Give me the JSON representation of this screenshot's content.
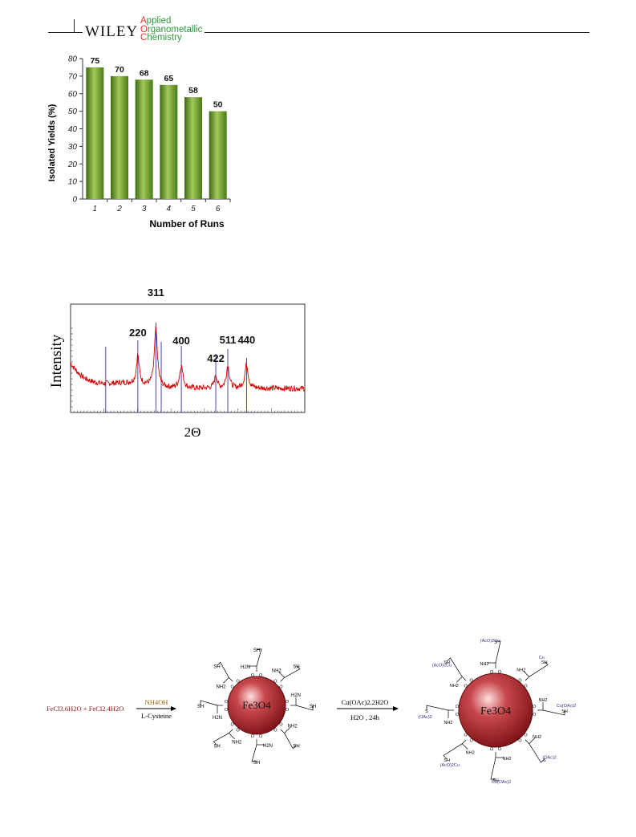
{
  "header": {
    "publisher": "WILEY",
    "journal_lines": [
      {
        "first": "A",
        "rest": "pplied"
      },
      {
        "first": "O",
        "rest": "rganometallic"
      },
      {
        "first": "C",
        "rest": "hemistry"
      }
    ],
    "colors": {
      "first_letter": "#e3342f",
      "rest": "#2a9a3a"
    }
  },
  "chart_data": [
    {
      "type": "bar",
      "categories": [
        "1",
        "2",
        "3",
        "4",
        "5",
        "6"
      ],
      "values": [
        75,
        70,
        68,
        65,
        58,
        50
      ],
      "data_labels": [
        "75",
        "70",
        "68",
        "65",
        "58",
        "50"
      ],
      "xlabel": "Number of Runs",
      "ylabel": "Isolated Yields (%)",
      "ylim": [
        0,
        80
      ],
      "yticks": [
        "0",
        "10",
        "20",
        "30",
        "40",
        "50",
        "60",
        "70",
        "80"
      ],
      "grid": false,
      "bar_color": "#6a9a2a"
    },
    {
      "type": "line",
      "xlabel": "2Θ",
      "ylabel": "Intensity",
      "peaks": [
        {
          "label": "220",
          "x": 30.1
        },
        {
          "label": "311",
          "x": 35.5
        },
        {
          "label": "400",
          "x": 43.1
        },
        {
          "label": "422",
          "x": 53.4
        },
        {
          "label": "511",
          "x": 57.0
        },
        {
          "label": "440",
          "x": 62.6
        }
      ],
      "reference_lines_x": [
        20.5,
        30.1,
        35.5,
        37.1,
        43.1,
        53.4,
        57.0,
        62.6
      ],
      "series_color": "#d40000",
      "reference_color": "#3333aa"
    }
  ],
  "scheme": {
    "reactants": "FeCl3.6H2O + FeCl2.4H2O",
    "step1_top": "NH4OH",
    "step1_bottom": "L-Cysteine",
    "core_label": "Fe3O4",
    "step2_top": "Cu(OAc)2.2H2O",
    "step2_bottom": "H2O , 24h",
    "ligand_left": {
      "sh": "SH",
      "nh2": "NH2",
      "h2n": "H2N"
    },
    "ligand_right": {
      "sh": "SH",
      "nh2": "NH2",
      "cu": "Cu",
      "cuoac": "Cu(OAc)2",
      "acocu": "(AcO)2Cu",
      "oac": "(OAc)2",
      "hn": "H",
      "n": "N",
      "s": "S",
      "h2": "H2"
    }
  }
}
